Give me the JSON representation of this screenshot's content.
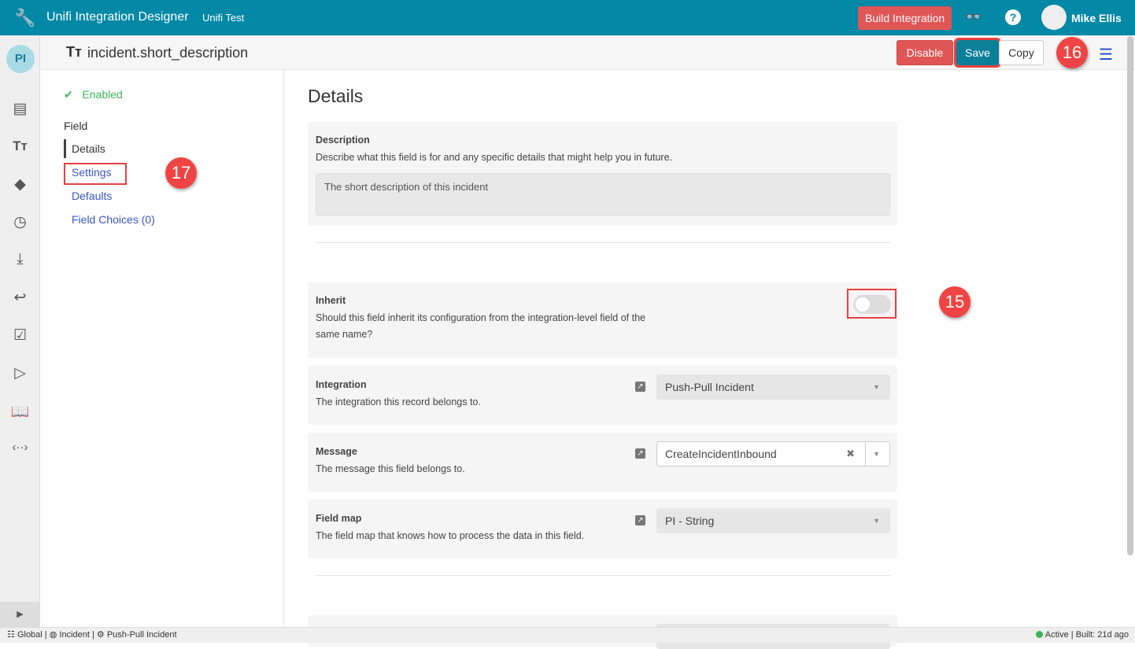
{
  "topbar": {
    "app_title": "Unifi Integration Designer",
    "instance": "Unifi Test",
    "build_label": "Build Integration",
    "user_name": "Mike Ellis"
  },
  "rail": {
    "avatar_initials": "PI"
  },
  "header": {
    "title": "incident.short_description",
    "disable_label": "Disable",
    "save_label": "Save",
    "copy_label": "Copy"
  },
  "badges": {
    "b15": "15",
    "b16": "16",
    "b17": "17"
  },
  "leftnav": {
    "status": "Enabled",
    "section": "Field",
    "items": [
      {
        "label": "Details"
      },
      {
        "label": "Settings"
      },
      {
        "label": "Defaults"
      },
      {
        "label": "Field Choices (0)"
      }
    ]
  },
  "main": {
    "heading": "Details",
    "description": {
      "label": "Description",
      "help": "Describe what this field is for and any specific details that might help you in future.",
      "value": "The short description of this incident"
    },
    "inherit": {
      "label": "Inherit",
      "help": "Should this field inherit its configuration from the integration-level field of the same name?",
      "enabled": false
    },
    "integration": {
      "label": "Integration",
      "help": "The integration this record belongs to.",
      "value": "Push-Pull Incident"
    },
    "message": {
      "label": "Message",
      "help": "The message this field belongs to.",
      "value": "CreateIncidentInbound"
    },
    "field_map": {
      "label": "Field map",
      "help": "The field map that knows how to process the data in this field.",
      "value": "PI - String"
    }
  },
  "statusbar": {
    "scope": "Global",
    "table": "Incident",
    "integration": "Push-Pull Incident",
    "state": "Active",
    "built": "Built: 21d ago"
  },
  "colors": {
    "topbar": "#0388a6",
    "danger": "#e05555",
    "primary": "#0b7f99",
    "link": "#3a55c4",
    "success": "#3cb55a",
    "annotation": "#f04444"
  }
}
